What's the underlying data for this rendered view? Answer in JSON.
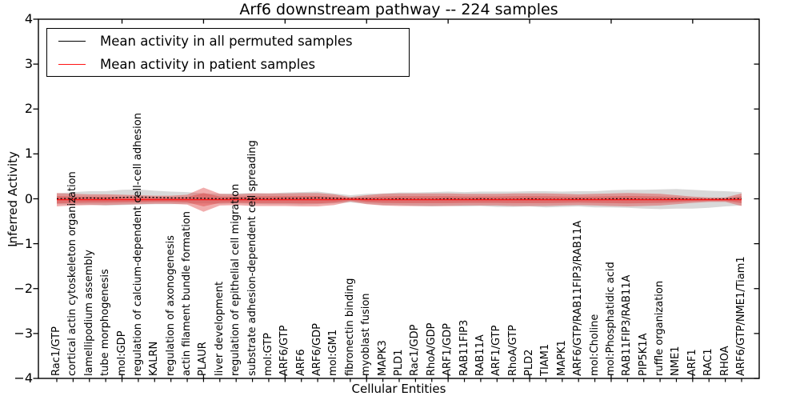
{
  "chart_data": {
    "type": "line",
    "title": "Arf6 downstream pathway -- 224 samples",
    "xlabel": "Cellular Entities",
    "ylabel": "Inferred Activity",
    "ylim": [
      -4,
      4
    ],
    "ytick_labels": [
      "4",
      "3",
      "2",
      "1",
      "0",
      "−1",
      "−2",
      "−3",
      "−4"
    ],
    "grid": false,
    "legend_position": "upper left",
    "categories": [
      "Rac1/GTP",
      "cortical actin cytoskeleton organization",
      "lamellipodium assembly",
      "tube morphogenesis",
      "mol:GDP",
      "regulation of calcium-dependent cell-cell adhesion",
      "KALRN",
      "regulation of axonogenesis",
      "actin filament bundle formation",
      "PLAUR",
      "liver development",
      "regulation of epithelial cell migration",
      "substrate adhesion-dependent cell spreading",
      "mol:GTP",
      "ARF6/GTP",
      "ARF6",
      "ARF6/GDP",
      "mol:GM1",
      "fibronectin binding",
      "myoblast fusion",
      "MAPK3",
      "PLD1",
      "Rac1/GDP",
      "RhoA/GDP",
      "ARF1/GDP",
      "RAB11FIP3",
      "RAB11A",
      "ARF1/GTP",
      "RhoA/GTP",
      "PLD2",
      "TIAM1",
      "MAPK1",
      "ARF6/GTP/RAB11FIP3/RAB11A",
      "mol:Choline",
      "mol:Phosphatidic acid",
      "RAB11FIP3/RAB11A",
      "PIP5K1A",
      "ruffle organization",
      "NME1",
      "ARF1",
      "RAC1",
      "RHOA",
      "ARF6/GTP/NME1/Tiam1"
    ],
    "series": [
      {
        "name": "Mean activity in all permuted samples",
        "color": "#000000",
        "line_style": "dashed",
        "band_color": "#808080",
        "band_opacity": 0.3,
        "mean": [
          0.0,
          0.01,
          0.02,
          0.01,
          0.03,
          0.04,
          0.03,
          0.02,
          0.02,
          0.01,
          0.0,
          0.01,
          0.01,
          0.0,
          0.01,
          0.01,
          0.02,
          0.01,
          0.0,
          0.0,
          -0.01,
          0.0,
          -0.01,
          -0.01,
          0.0,
          -0.01,
          0.0,
          -0.01,
          -0.01,
          0.0,
          -0.01,
          -0.01,
          0.0,
          -0.01,
          0.0,
          0.0,
          -0.01,
          -0.01,
          0.0,
          -0.01,
          -0.01,
          0.0,
          0.0
        ],
        "band_half_width": [
          0.12,
          0.14,
          0.15,
          0.16,
          0.17,
          0.17,
          0.15,
          0.14,
          0.13,
          0.11,
          0.11,
          0.11,
          0.12,
          0.12,
          0.13,
          0.14,
          0.14,
          0.11,
          0.08,
          0.11,
          0.13,
          0.14,
          0.15,
          0.16,
          0.16,
          0.16,
          0.16,
          0.17,
          0.17,
          0.17,
          0.18,
          0.17,
          0.17,
          0.18,
          0.19,
          0.2,
          0.21,
          0.22,
          0.22,
          0.21,
          0.19,
          0.17,
          0.15
        ]
      },
      {
        "name": "Mean activity in patient samples",
        "color": "#ff1414",
        "line_style": "solid",
        "band_color": "#dd3c3c",
        "band_opacity": 0.42,
        "inner_band_ratio": 0.55,
        "mean": [
          -0.02,
          -0.02,
          -0.02,
          -0.02,
          -0.02,
          -0.02,
          -0.02,
          -0.02,
          -0.02,
          -0.02,
          -0.02,
          -0.02,
          -0.02,
          -0.02,
          -0.02,
          -0.02,
          -0.02,
          -0.02,
          -0.01,
          -0.02,
          -0.02,
          -0.02,
          -0.02,
          -0.02,
          -0.02,
          -0.02,
          -0.02,
          -0.02,
          -0.02,
          -0.02,
          -0.02,
          -0.02,
          -0.02,
          -0.02,
          -0.02,
          -0.02,
          -0.02,
          -0.02,
          -0.02,
          -0.02,
          -0.02,
          -0.02,
          -0.02
        ],
        "band_half_width": [
          0.15,
          0.13,
          0.12,
          0.12,
          0.11,
          0.1,
          0.09,
          0.09,
          0.11,
          0.27,
          0.13,
          0.12,
          0.14,
          0.14,
          0.14,
          0.15,
          0.15,
          0.12,
          0.05,
          0.1,
          0.13,
          0.14,
          0.14,
          0.14,
          0.14,
          0.13,
          0.13,
          0.13,
          0.14,
          0.14,
          0.14,
          0.13,
          0.12,
          0.13,
          0.14,
          0.15,
          0.14,
          0.13,
          0.1,
          0.07,
          0.05,
          0.05,
          0.14
        ]
      }
    ]
  }
}
